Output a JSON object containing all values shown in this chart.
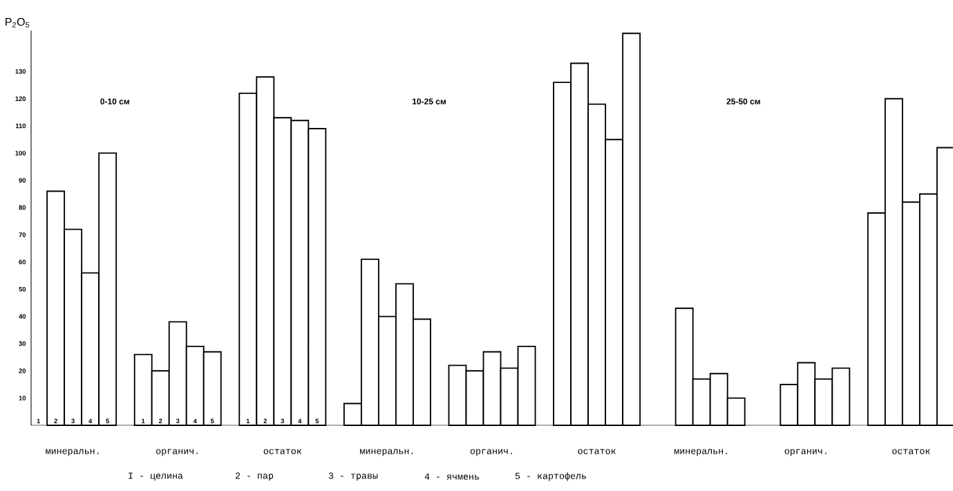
{
  "chart_data": {
    "type": "bar",
    "ylabel": "P$_{2}$O$_{5}$",
    "categories": [
      "минеральн.",
      "органич.",
      "остаток",
      "минеральн.",
      "органич.",
      "остаток",
      "минеральн.",
      "органич.",
      "остаток"
    ],
    "series": [
      {
        "name": "1",
        "color": "#ffffff",
        "values": [
          null,
          26,
          122,
          8,
          22,
          126,
          null,
          null,
          78
        ]
      },
      {
        "name": "2",
        "color": "#ffffff",
        "values": [
          86,
          20,
          128,
          61,
          20,
          133,
          43,
          15,
          120
        ]
      },
      {
        "name": "3",
        "color": "#ffffff",
        "values": [
          72,
          38,
          113,
          40,
          27,
          118,
          17,
          23,
          82
        ]
      },
      {
        "name": "4",
        "color": "#ffffff",
        "values": [
          56,
          29,
          112,
          52,
          21,
          105,
          19,
          17,
          85
        ]
      },
      {
        "name": "5",
        "color": "#ffffff",
        "values": [
          100,
          27,
          109,
          39,
          29,
          144,
          10,
          21,
          102
        ]
      }
    ],
    "ylim": [
      0,
      145
    ],
    "yticks": [
      10,
      20,
      30,
      40,
      50,
      60,
      70,
      80,
      90,
      100,
      110,
      120,
      130
    ],
    "annotations": [
      "0-10 см",
      "10-25 см",
      "25-50 см",
      "I - целина",
      "2 - пар",
      "3 - травы",
      "4 - ячмень",
      "5 - картофель"
    ]
  }
}
